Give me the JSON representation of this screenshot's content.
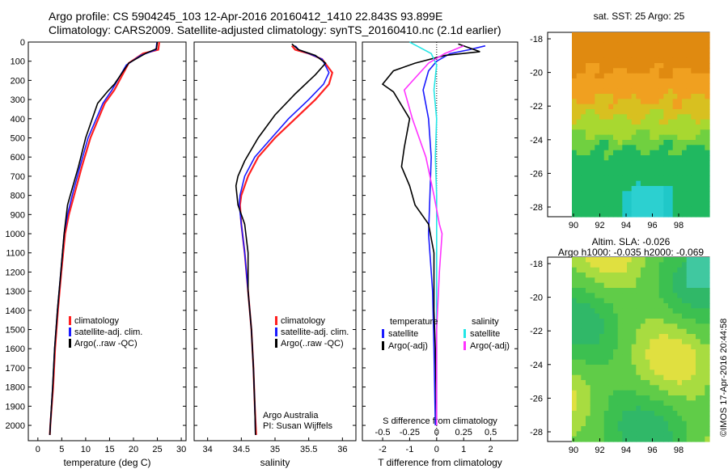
{
  "header": {
    "title_line1": "Argo profile: CS 5904245_103 12-Apr-2016 20160412_1410 22.843S 93.899E",
    "title_line2": "Climatology: CARS2009. Satellite-adjusted climatology: synTS_20160410.nc (2.1d earlier)"
  },
  "colors": {
    "climatology": "#ff2020",
    "satellite_clim": "#1a1aff",
    "argo": "#000000",
    "salinity_satellite": "#22e6e6",
    "salinity_argo_adj": "#ff33ff"
  },
  "maps": {
    "sst_title": "sat. SST: 25 Argo: 25",
    "sla_title1": "Altim. SLA: -0.026",
    "sla_title2": "Argo h1000: -0.035 h2000: -0.069",
    "credit": "©IMOS 17-Apr-2016 20:44:58",
    "yticks": [
      "-18",
      "-20",
      "-22",
      "-24",
      "-26",
      "-28"
    ],
    "xticks": [
      "90",
      "92",
      "94",
      "96",
      "98"
    ]
  },
  "chart_data": [
    {
      "type": "line",
      "xlabel": "temperature (deg C)",
      "ylabel": "",
      "xlim": [
        -2,
        31
      ],
      "ylim": [
        2080,
        0
      ],
      "x_ticks": [
        0,
        5,
        10,
        15,
        20,
        25,
        30
      ],
      "y_ticks": [
        0,
        100,
        200,
        300,
        400,
        500,
        600,
        700,
        800,
        900,
        1000,
        1100,
        1200,
        1300,
        1400,
        1500,
        1600,
        1700,
        1800,
        1900,
        2000
      ],
      "legend": [
        "climatology",
        "satellite-adj. clim.",
        "Argo(..raw -QC)"
      ],
      "series": [
        {
          "name": "climatology",
          "points": [
            [
              25.4,
              0
            ],
            [
              25.2,
              40
            ],
            [
              22,
              60
            ],
            [
              19,
              110
            ],
            [
              16,
              250
            ],
            [
              14,
              320
            ],
            [
              11,
              500
            ],
            [
              9.2,
              650
            ],
            [
              7.8,
              780
            ],
            [
              6.5,
              900
            ],
            [
              5.7,
              1000
            ],
            [
              4.9,
              1200
            ],
            [
              4.2,
              1400
            ],
            [
              3.6,
              1600
            ],
            [
              3.2,
              1800
            ],
            [
              2.6,
              2000
            ],
            [
              2.5,
              2050
            ]
          ]
        },
        {
          "name": "satellite-adj. clim.",
          "points": [
            [
              24.9,
              0
            ],
            [
              24.7,
              40
            ],
            [
              21.5,
              70
            ],
            [
              18.5,
              120
            ],
            [
              15.5,
              250
            ],
            [
              13.6,
              320
            ],
            [
              10.5,
              500
            ],
            [
              8.8,
              650
            ],
            [
              7.4,
              780
            ],
            [
              6.2,
              900
            ],
            [
              5.5,
              1000
            ],
            [
              4.8,
              1200
            ],
            [
              4.1,
              1400
            ],
            [
              3.5,
              1600
            ],
            [
              3.1,
              1800
            ],
            [
              2.6,
              2000
            ],
            [
              2.5,
              2050
            ]
          ]
        },
        {
          "name": "Argo(..raw -QC)",
          "points": [
            [
              25.0,
              0
            ],
            [
              24.8,
              35
            ],
            [
              22.5,
              60
            ],
            [
              19,
              110
            ],
            [
              16,
              220
            ],
            [
              14.5,
              260
            ],
            [
              12.5,
              320
            ],
            [
              10,
              500
            ],
            [
              8.5,
              650
            ],
            [
              7.0,
              780
            ],
            [
              6.2,
              850
            ],
            [
              5.5,
              1000
            ],
            [
              4.8,
              1200
            ],
            [
              4.1,
              1400
            ],
            [
              3.5,
              1600
            ],
            [
              3.1,
              1800
            ],
            [
              2.6,
              2000
            ],
            [
              2.5,
              2050
            ]
          ]
        }
      ]
    },
    {
      "type": "line",
      "xlabel": "salinity",
      "xlim": [
        33.8,
        36.2
      ],
      "ylim": [
        2080,
        0
      ],
      "x_ticks": [
        34,
        34.5,
        35,
        35.5,
        36
      ],
      "legend": [
        "climatology",
        "satellite-adj. clim.",
        "Argo(..raw -QC)"
      ],
      "annotations": [
        "Argo Australia",
        "PI: Susan Wijffels"
      ],
      "series": [
        {
          "name": "climatology",
          "points": [
            [
              35.25,
              20
            ],
            [
              35.3,
              40
            ],
            [
              35.5,
              60
            ],
            [
              35.7,
              90
            ],
            [
              35.85,
              160
            ],
            [
              35.8,
              220
            ],
            [
              35.6,
              300
            ],
            [
              35.3,
              400
            ],
            [
              35.0,
              500
            ],
            [
              34.75,
              600
            ],
            [
              34.6,
              700
            ],
            [
              34.5,
              800
            ],
            [
              34.48,
              850
            ],
            [
              34.5,
              950
            ],
            [
              34.55,
              1100
            ],
            [
              34.6,
              1300
            ],
            [
              34.65,
              1500
            ],
            [
              34.68,
              1700
            ],
            [
              34.7,
              1900
            ],
            [
              34.72,
              2050
            ]
          ]
        },
        {
          "name": "satellite-adj. clim.",
          "points": [
            [
              35.3,
              20
            ],
            [
              35.35,
              40
            ],
            [
              35.5,
              60
            ],
            [
              35.7,
              90
            ],
            [
              35.8,
              160
            ],
            [
              35.72,
              220
            ],
            [
              35.5,
              300
            ],
            [
              35.2,
              400
            ],
            [
              34.95,
              500
            ],
            [
              34.7,
              600
            ],
            [
              34.55,
              700
            ],
            [
              34.48,
              800
            ],
            [
              34.47,
              850
            ],
            [
              34.5,
              950
            ],
            [
              34.55,
              1100
            ],
            [
              34.6,
              1300
            ],
            [
              34.65,
              1500
            ],
            [
              34.68,
              1700
            ],
            [
              34.7,
              1900
            ],
            [
              34.71,
              2050
            ]
          ]
        },
        {
          "name": "Argo(..raw -QC)",
          "points": [
            [
              35.25,
              10
            ],
            [
              35.35,
              40
            ],
            [
              35.6,
              70
            ],
            [
              35.75,
              110
            ],
            [
              35.6,
              170
            ],
            [
              35.3,
              270
            ],
            [
              35.0,
              380
            ],
            [
              34.75,
              500
            ],
            [
              34.55,
              620
            ],
            [
              34.45,
              700
            ],
            [
              34.42,
              750
            ],
            [
              34.45,
              850
            ],
            [
              34.55,
              950
            ],
            [
              34.6,
              1100
            ],
            [
              34.6,
              1300
            ],
            [
              34.65,
              1500
            ],
            [
              34.68,
              1700
            ],
            [
              34.7,
              1900
            ],
            [
              34.71,
              2050
            ]
          ]
        }
      ]
    },
    {
      "type": "line",
      "xlabel": "T difference from climatology",
      "top_xlabel": "S difference from climatology",
      "xlim": [
        -2.75,
        3.0
      ],
      "ylim": [
        2080,
        0
      ],
      "x_ticks": [
        -2,
        -1,
        0,
        1,
        2
      ],
      "top_ticks": [
        "-0.5",
        "-0.25",
        "0",
        "0.25",
        "0.5"
      ],
      "legend_headers": [
        "temperature",
        "salinity"
      ],
      "legend": [
        "satellite",
        "Argo(-adj)",
        "satellite",
        "Argo(-adj)"
      ],
      "series": [
        {
          "name": "satellite",
          "points": [
            [
              1.8,
              20
            ],
            [
              1.2,
              40
            ],
            [
              0.5,
              60
            ],
            [
              0.0,
              100
            ],
            [
              -0.3,
              150
            ],
            [
              -0.5,
              250
            ],
            [
              -0.3,
              400
            ],
            [
              -0.2,
              600
            ],
            [
              -0.25,
              800
            ],
            [
              -0.3,
              1000
            ],
            [
              -0.15,
              1300
            ],
            [
              -0.1,
              1600
            ],
            [
              -0.05,
              2000
            ]
          ]
        },
        {
          "name": "Argo(-adj)",
          "points": [
            [
              0.8,
              10
            ],
            [
              1.6,
              50
            ],
            [
              0.3,
              70
            ],
            [
              -0.8,
              110
            ],
            [
              -1.6,
              150
            ],
            [
              -2.0,
              220
            ],
            [
              -1.6,
              260
            ],
            [
              -1.0,
              400
            ],
            [
              -1.2,
              550
            ],
            [
              -1.3,
              650
            ],
            [
              -1.0,
              750
            ],
            [
              -0.8,
              850
            ],
            [
              -0.3,
              950
            ],
            [
              -0.1,
              1100
            ],
            [
              -0.1,
              1400
            ],
            [
              -0.05,
              1600
            ],
            [
              0.0,
              2000
            ]
          ]
        },
        {
          "name": "satellite",
          "points": [
            [
              -1.0,
              0
            ],
            [
              -0.2,
              60
            ],
            [
              0.0,
              120
            ],
            [
              -0.1,
              250
            ],
            [
              0.0,
              400
            ],
            [
              -0.05,
              600
            ],
            [
              0.0,
              800
            ],
            [
              0.0,
              1100
            ],
            [
              0.0,
              1500
            ],
            [
              0.0,
              2000
            ]
          ]
        },
        {
          "name": "Argo(-adj)",
          "points": [
            [
              1.0,
              20
            ],
            [
              0.3,
              60
            ],
            [
              -0.3,
              110
            ],
            [
              -1.2,
              250
            ],
            [
              -0.9,
              400
            ],
            [
              -0.4,
              600
            ],
            [
              -0.1,
              800
            ],
            [
              0.1,
              950
            ],
            [
              0.2,
              1000
            ],
            [
              0.1,
              1200
            ],
            [
              0.0,
              1500
            ],
            [
              0.0,
              2000
            ]
          ]
        }
      ]
    }
  ]
}
